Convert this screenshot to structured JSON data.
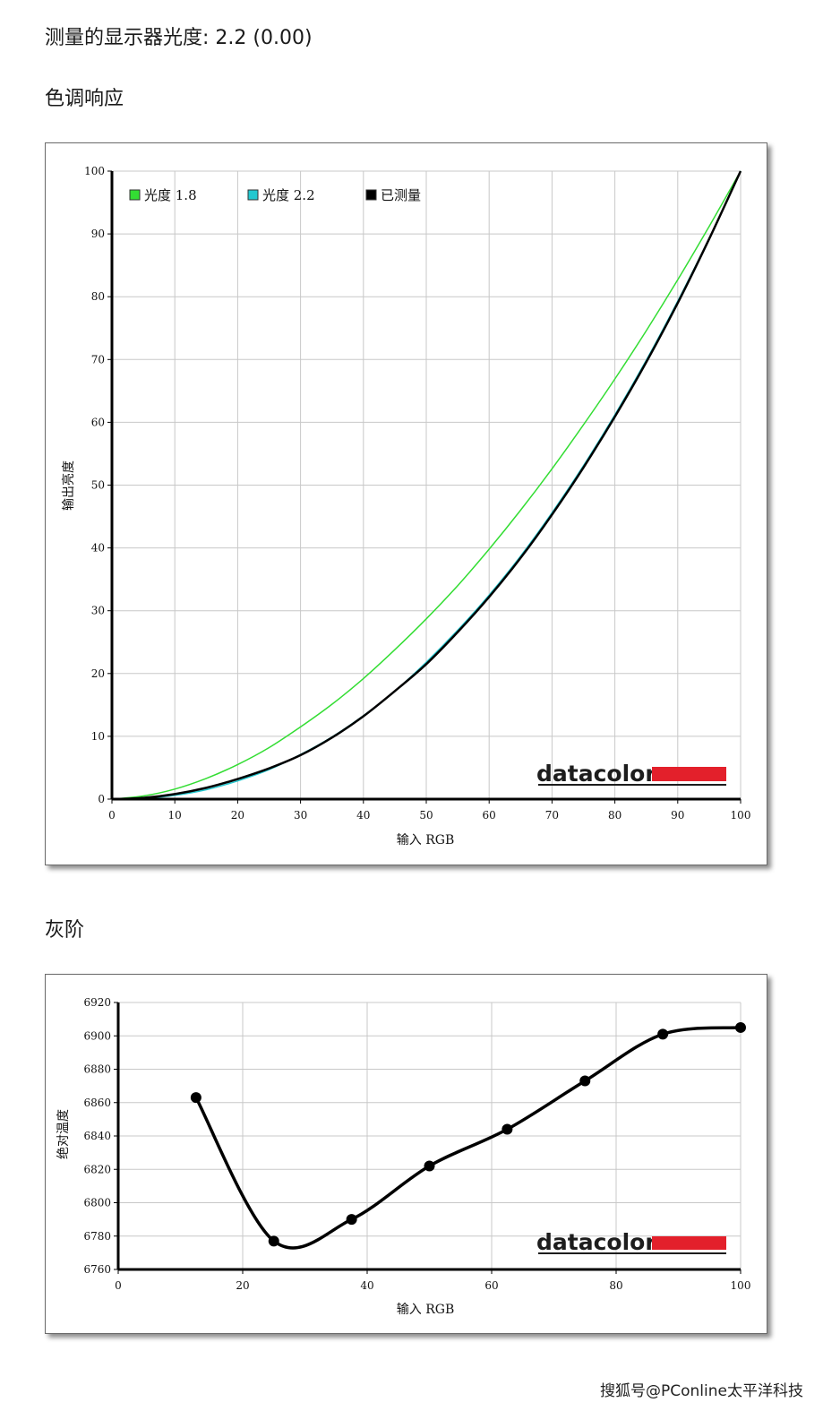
{
  "measured_gamma_text": "测量的显示器光度: 2.2 (0.00)",
  "section1_title": "色调响应",
  "section2_title": "灰阶",
  "brand": "datacolor",
  "watermark": "搜狐号@PConline太平洋科技",
  "colors": {
    "gamma18": "#33dd33",
    "gamma22": "#22c8d0",
    "measured": "#000000",
    "brand_bar": "#e3202b",
    "grid": "#c8c8c8"
  },
  "chart_data": [
    {
      "type": "line",
      "title": "色调响应",
      "xlabel": "输入 RGB",
      "ylabel": "输出亮度",
      "xlim": [
        0,
        100
      ],
      "ylim": [
        0,
        100
      ],
      "x_ticks": [
        "0",
        "10",
        "20",
        "30",
        "40",
        "50",
        "60",
        "70",
        "80",
        "90",
        "100"
      ],
      "y_ticks": [
        "0",
        "10",
        "20",
        "30",
        "40",
        "50",
        "60",
        "70",
        "80",
        "90",
        "100"
      ],
      "grid": true,
      "legend_position": "top-left",
      "x": [
        0,
        5,
        10,
        15,
        20,
        25,
        30,
        35,
        40,
        45,
        50,
        55,
        60,
        65,
        70,
        75,
        80,
        85,
        90,
        95,
        100
      ],
      "series": [
        {
          "name": "光度 1.8",
          "color": "#33dd33",
          "values": [
            0,
            0.5,
            1.6,
            3.3,
            5.5,
            8.2,
            11.5,
            15.1,
            19.2,
            23.8,
            28.7,
            34.0,
            39.8,
            46.0,
            52.6,
            59.6,
            66.9,
            74.6,
            82.7,
            91.2,
            100
          ]
        },
        {
          "name": "光度 2.2",
          "color": "#22c8d0",
          "values": [
            0,
            0.1,
            0.6,
            1.5,
            2.9,
            4.7,
            7.1,
            9.9,
            13.3,
            17.2,
            21.8,
            26.9,
            32.5,
            38.7,
            45.6,
            53.1,
            61.2,
            69.9,
            79.3,
            89.3,
            100
          ]
        },
        {
          "name": "已测量",
          "color": "#000000",
          "values": [
            0,
            0.2,
            0.8,
            1.8,
            3.2,
            4.9,
            7.0,
            9.8,
            13.2,
            17.2,
            21.5,
            26.6,
            32.2,
            38.4,
            45.3,
            52.8,
            60.9,
            69.6,
            79.0,
            89.2,
            100
          ]
        }
      ]
    },
    {
      "type": "line",
      "title": "灰阶",
      "xlabel": "输入 RGB",
      "ylabel": "绝对温度",
      "xlim": [
        0,
        100
      ],
      "ylim": [
        6760,
        6920
      ],
      "x_ticks": [
        "0",
        "20",
        "40",
        "60",
        "80",
        "100"
      ],
      "y_ticks": [
        "6760",
        "6780",
        "6800",
        "6820",
        "6840",
        "6860",
        "6880",
        "6900",
        "6920"
      ],
      "grid": true,
      "x": [
        12.5,
        25,
        37.5,
        50,
        62.5,
        75,
        87.5,
        100
      ],
      "series": [
        {
          "color": "#000000",
          "values": [
            6863,
            6777,
            6790,
            6822,
            6844,
            6873,
            6901,
            6905
          ]
        }
      ]
    }
  ]
}
